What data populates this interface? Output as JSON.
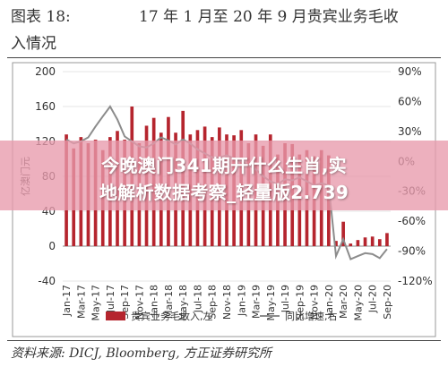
{
  "header": {
    "figure_label": "图表 18:",
    "title_line1": "17 年 1 月至 20 年 9 月贵宾业务毛收",
    "title_line2": "入情况"
  },
  "source": "资料来源: DICJ, Bloomberg, 方正证券研究所",
  "overlay": {
    "line1": "今晚澳门341期开什么生肖,实",
    "line2": "地解析数据考察_轻量版2.739"
  },
  "colors": {
    "bar": "#b5252e",
    "line": "#8c8c8c",
    "grid": "#e4e4e4"
  },
  "chart_data": {
    "type": "bar",
    "title": "",
    "ylabel": "亿澳门元",
    "y2label": "",
    "ylim": [
      -40,
      200
    ],
    "yticks": [
      -40,
      0,
      40,
      80,
      120,
      160,
      200
    ],
    "y2lim": [
      -120,
      90
    ],
    "y2ticks": [
      "90%",
      "60%",
      "30%",
      "0%",
      "-30%",
      "-60%",
      "-90%",
      "-120%"
    ],
    "y2tick_values": [
      90,
      60,
      30,
      0,
      -30,
      -60,
      -90,
      -120
    ],
    "categories": [
      "Jan-17",
      "Feb-17",
      "Mar-17",
      "Apr-17",
      "May-17",
      "Jun-17",
      "Jul-17",
      "Aug-17",
      "Sep-17",
      "Oct-17",
      "Nov-17",
      "Dec-17",
      "Jan-18",
      "Feb-18",
      "Mar-18",
      "Apr-18",
      "May-18",
      "Jun-18",
      "Jul-18",
      "Aug-18",
      "Sep-18",
      "Oct-18",
      "Nov-18",
      "Dec-18",
      "Jan-19",
      "Feb-19",
      "Mar-19",
      "Apr-19",
      "May-19",
      "Jun-19",
      "Jul-19",
      "Aug-19",
      "Sep-19",
      "Oct-19",
      "Nov-19",
      "Dec-19",
      "Jan-20",
      "Feb-20",
      "Mar-20",
      "Apr-20",
      "May-20",
      "Jun-20",
      "Jul-20",
      "Aug-20",
      "Sep-20"
    ],
    "xtick_labels": [
      "Jan-17",
      "Mar-17",
      "May-17",
      "Jul-17",
      "Sep-17",
      "Nov-17",
      "Jan-18",
      "Mar-18",
      "May-18",
      "Jul-18",
      "Sep-18",
      "Nov-18",
      "Jan-19",
      "Mar-19",
      "May-19",
      "Jul-19",
      "Sep-19",
      "Nov-19",
      "Jan-20",
      "Mar-20",
      "May-20",
      "Jul-20",
      "Sep-20"
    ],
    "series": [
      {
        "name": "贵宾业务毛收入,左",
        "axis": "left",
        "type": "bar",
        "values": [
          128,
          112,
          125,
          118,
          122,
          110,
          125,
          132,
          122,
          160,
          118,
          138,
          147,
          130,
          148,
          130,
          155,
          128,
          133,
          137,
          125,
          136,
          128,
          127,
          133,
          118,
          128,
          115,
          128,
          105,
          118,
          117,
          105,
          110,
          103,
          110,
          104,
          6,
          28,
          3,
          7,
          10,
          11,
          8,
          15
        ]
      },
      {
        "name": "同比增速,右",
        "axis": "right",
        "type": "line",
        "values": [
          22,
          18,
          20,
          24,
          35,
          45,
          55,
          42,
          25,
          20,
          15,
          14,
          18,
          24,
          21,
          17,
          22,
          18,
          12,
          8,
          4,
          4,
          6,
          3,
          0,
          -4,
          -8,
          -15,
          -20,
          -23,
          -18,
          -19,
          -16,
          -20,
          -24,
          -22,
          -24,
          -95,
          -78,
          -98,
          -95,
          -92,
          -93,
          -97,
          -88
        ]
      }
    ],
    "grid": true,
    "legend": "bottom"
  }
}
